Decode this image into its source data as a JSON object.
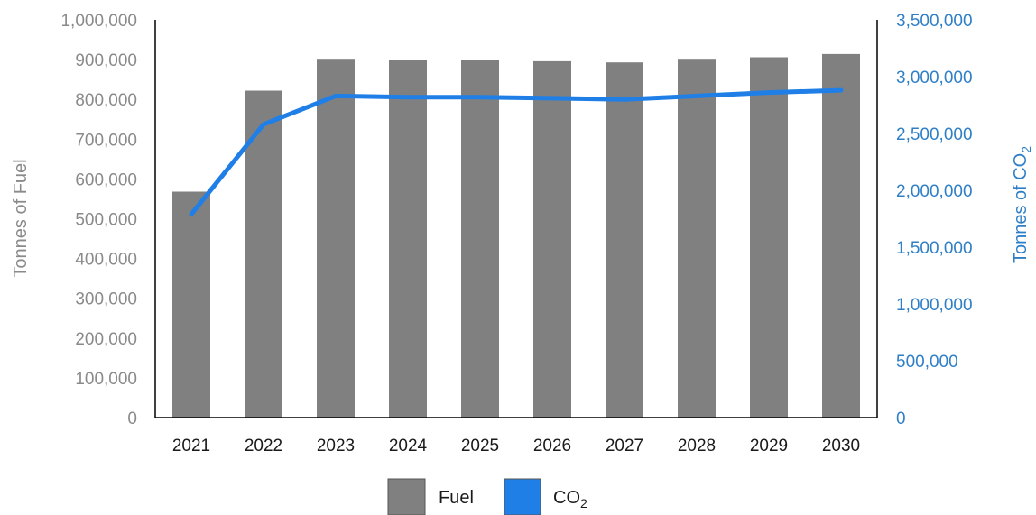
{
  "chart_data": {
    "type": "bar+line",
    "categories": [
      "2021",
      "2022",
      "2023",
      "2024",
      "2025",
      "2026",
      "2027",
      "2028",
      "2029",
      "2030"
    ],
    "series": [
      {
        "name": "Fuel",
        "type": "bar",
        "axis": "left",
        "values": [
          568000,
          822000,
          902000,
          899000,
          899000,
          896000,
          893000,
          902000,
          906000,
          914000
        ]
      },
      {
        "name": "CO",
        "name_subscript": "2",
        "type": "line",
        "axis": "right",
        "values": [
          1790000,
          2580000,
          2830000,
          2820000,
          2820000,
          2810000,
          2800000,
          2830000,
          2860000,
          2880000
        ]
      }
    ],
    "ylabel": "Tonnes of Fuel",
    "y2label": "Tonnes of CO",
    "y2label_subscript": "2",
    "ylim": [
      0,
      1000000
    ],
    "y2lim": [
      0,
      3500000
    ],
    "yticks": [
      "0",
      "100,000",
      "200,000",
      "300,000",
      "400,000",
      "500,000",
      "600,000",
      "700,000",
      "800,000",
      "900,000",
      "1,000,000"
    ],
    "y2ticks": [
      "0",
      "500,000",
      "1,000,000",
      "1,500,000",
      "2,000,000",
      "2,500,000",
      "3,000,000",
      "3,500,000"
    ],
    "grid": false,
    "legend": "bottom-center",
    "colors": {
      "bar": "#808080",
      "line": "#1f7fe6",
      "left_axis_text": "#8a8a8a",
      "right_axis_text": "#2f7fc7",
      "axis_line": "#000000"
    }
  }
}
